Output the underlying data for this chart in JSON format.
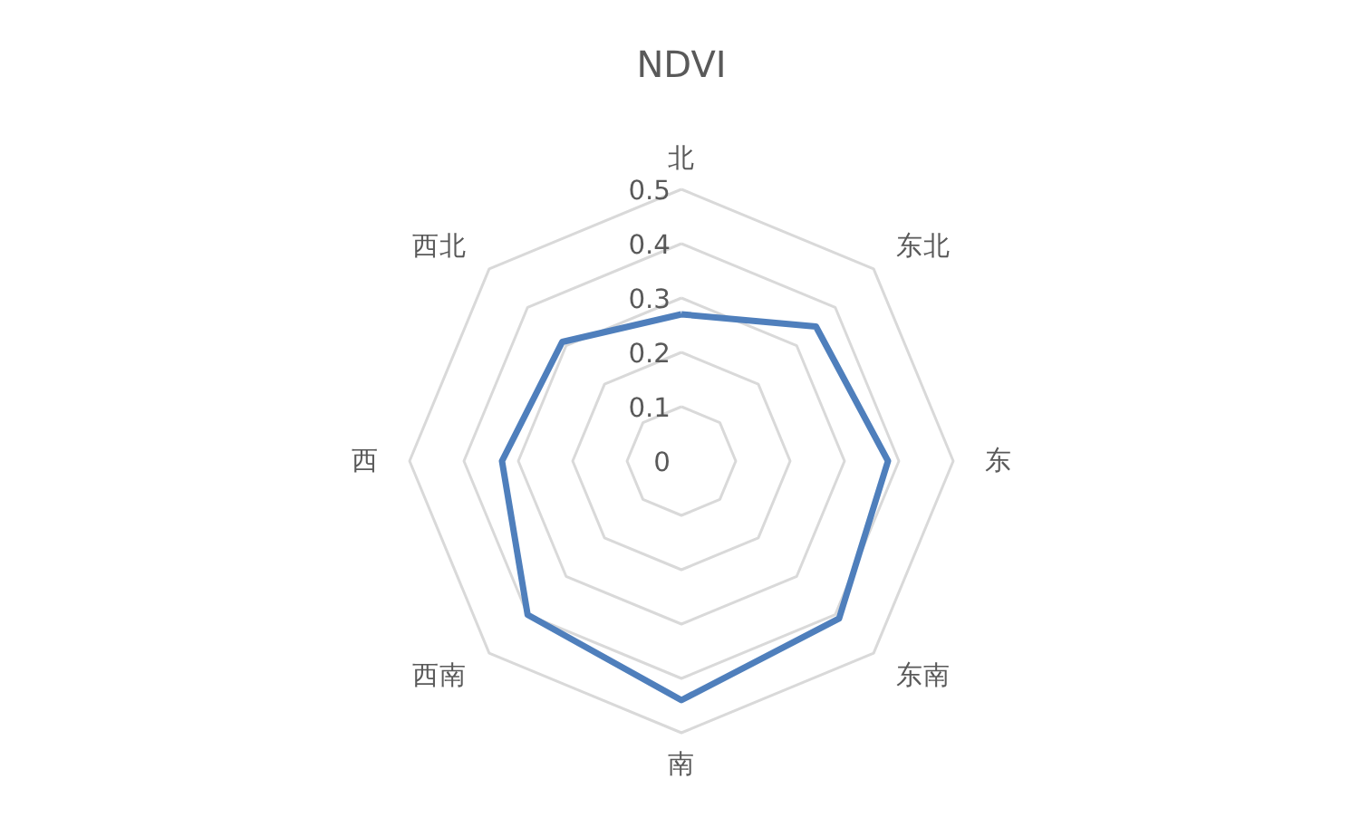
{
  "chart_data": {
    "type": "radar",
    "title": "NDVI",
    "categories": [
      "北",
      "东北",
      "东",
      "东南",
      "南",
      "西南",
      "西",
      "西北"
    ],
    "series": [
      {
        "color": "#4f7fbc",
        "values": [
          0.27,
          0.35,
          0.38,
          0.41,
          0.44,
          0.4,
          0.33,
          0.31
        ]
      }
    ],
    "ylim": [
      0,
      0.5
    ],
    "yticks": [
      0,
      0.1,
      0.2,
      0.3,
      0.4,
      0.5
    ],
    "grid": true
  }
}
